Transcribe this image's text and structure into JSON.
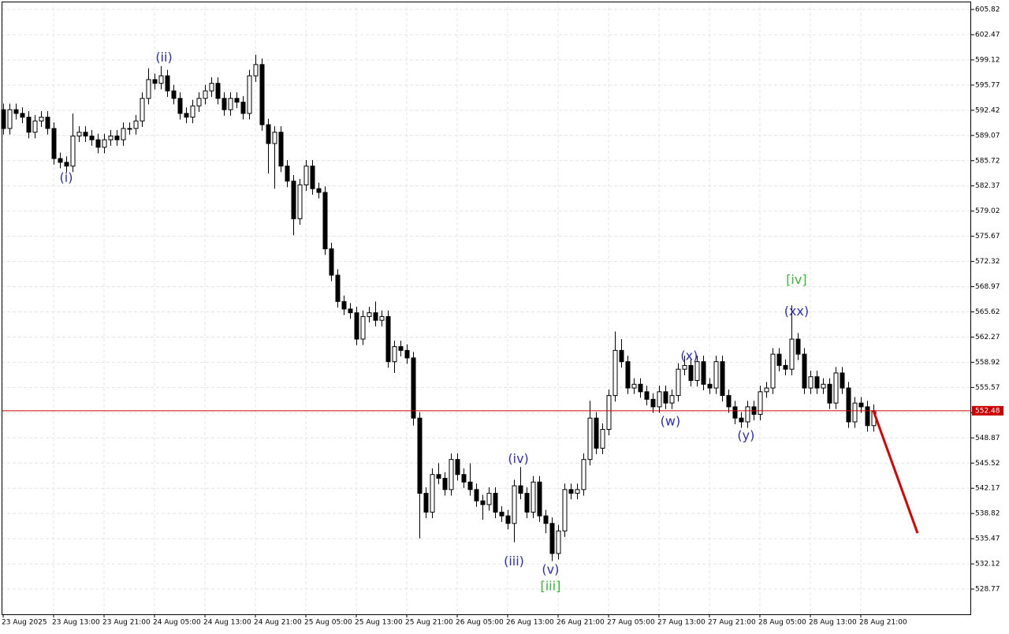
{
  "chart_data": {
    "type": "candlestick",
    "open": [
      592.5,
      590,
      592.5,
      592,
      591.5,
      589.5,
      591,
      591.5,
      590,
      586,
      585.5,
      585,
      589,
      589.5,
      589,
      588.5,
      587.5,
      588.5,
      589,
      588.5,
      590,
      590,
      591,
      594,
      596.5,
      596,
      597,
      595,
      594,
      592,
      591.5,
      593,
      594,
      595,
      596,
      594,
      592.5,
      594,
      593.5,
      592,
      597,
      598.5,
      590.5,
      588,
      589.5,
      585,
      583,
      578,
      582.5,
      585,
      582,
      581.5,
      574,
      570.5,
      567,
      566,
      565.5,
      562,
      565,
      565.5,
      564.5,
      565,
      559,
      561,
      560.5,
      559.5,
      551.5,
      541.5,
      539,
      544,
      543.5,
      542,
      546,
      544,
      543,
      542,
      540.5,
      540,
      541.5,
      539,
      538.5,
      537.5,
      542.5,
      541.5,
      539,
      543,
      538.5,
      537.5,
      533.5,
      536.5,
      542,
      541.5,
      542,
      546,
      551.5,
      547.5,
      550,
      554.5,
      560.5,
      559,
      555.5,
      556,
      555,
      554,
      553,
      555,
      553.5,
      554.5,
      558,
      558.5,
      556.5,
      559,
      556,
      555.5,
      559,
      554.5,
      553,
      551.5,
      551,
      553,
      552,
      555,
      555.5,
      560,
      558.5,
      558,
      562,
      560,
      555.5,
      557,
      555.5,
      556,
      553.5,
      557.5,
      555.5,
      551,
      553.5,
      553,
      550.5
    ],
    "high": [
      593.3,
      593.3,
      593.3,
      592.8,
      592.3,
      591.8,
      592.3,
      592.3,
      590.8,
      586.8,
      586.3,
      592,
      590.3,
      590.3,
      589.8,
      589.3,
      589.3,
      589.8,
      589.8,
      590.8,
      590.8,
      591.8,
      594.8,
      598,
      597.3,
      598.3,
      597.8,
      595.8,
      594.8,
      592.8,
      593.8,
      594.8,
      595.8,
      596.8,
      596.8,
      594.8,
      594.8,
      594.8,
      594.3,
      597.8,
      599.8,
      599.3,
      591.3,
      590.3,
      590.3,
      585.8,
      583.8,
      583.3,
      585.8,
      585.8,
      582.8,
      582.3,
      574.8,
      571.3,
      567.8,
      566.8,
      566.3,
      565.8,
      566.3,
      567,
      565.8,
      565.8,
      561.8,
      561.8,
      561.3,
      560.3,
      552.3,
      542.3,
      544.8,
      545.5,
      544.3,
      546.8,
      546.8,
      544.8,
      545.5,
      542.8,
      541.3,
      542.3,
      542.3,
      539.8,
      539.3,
      543.3,
      545,
      542.3,
      543.8,
      543.8,
      539.3,
      538.3,
      537.3,
      542.8,
      542.8,
      542.8,
      546.8,
      553.8,
      552.3,
      550.8,
      555.3,
      563,
      562,
      559.8,
      556.8,
      556.8,
      555.8,
      554.8,
      555.8,
      555.8,
      555.3,
      558.8,
      559.8,
      559.3,
      559.8,
      559.8,
      556.8,
      559.8,
      559.8,
      555.3,
      553.8,
      552.3,
      553.8,
      553.8,
      555.8,
      556.3,
      560.8,
      560.8,
      559.3,
      566.5,
      562.8,
      560.8,
      557.8,
      557.8,
      556.8,
      556.8,
      558.3,
      558.3,
      556.3,
      554.3,
      554.3,
      553.8,
      553.3
    ],
    "low": [
      589.2,
      589.2,
      591.2,
      590.7,
      588.7,
      588.7,
      590.2,
      589.2,
      585.2,
      584.7,
      584.2,
      584.2,
      588.2,
      588.2,
      587.7,
      586.7,
      586.7,
      587.7,
      587.7,
      587.7,
      589.2,
      589.2,
      590.2,
      593.2,
      595.2,
      595.2,
      594.2,
      593.2,
      591.2,
      590.7,
      590.7,
      592.2,
      593.2,
      594.2,
      593.2,
      591.7,
      591.7,
      592.7,
      591.2,
      591.2,
      596.2,
      589.7,
      584,
      582,
      584.2,
      582.2,
      575.8,
      577.2,
      581.7,
      581.2,
      580.7,
      573.2,
      569.7,
      566.2,
      565.2,
      564.7,
      561.2,
      561.2,
      564.2,
      563.7,
      563.7,
      558.2,
      557.5,
      559.7,
      558.7,
      550.5,
      535.5,
      538.2,
      538.2,
      542.7,
      541.2,
      541.2,
      543.2,
      542.2,
      541.2,
      539.7,
      538,
      539.2,
      538.2,
      537.7,
      536.7,
      535,
      540.7,
      538.2,
      538.2,
      537.7,
      536.2,
      532.5,
      532.7,
      535.7,
      540.7,
      540.7,
      541.2,
      545.2,
      546.7,
      546.7,
      549.2,
      553.7,
      558.2,
      554.7,
      554.7,
      554.2,
      553.2,
      552.2,
      552.2,
      552.7,
      552.7,
      553.7,
      557.2,
      555.7,
      555.7,
      555.2,
      554.7,
      554.7,
      553.7,
      552.2,
      550.7,
      550.2,
      550.2,
      551.2,
      551.2,
      554.2,
      554.7,
      557.7,
      557.2,
      557.2,
      559.2,
      554.7,
      554.7,
      554.7,
      554.7,
      552.7,
      552.7,
      554.7,
      550.2,
      550.2,
      552.2,
      549.7,
      549.7
    ],
    "close": [
      590,
      592.5,
      592,
      591.5,
      589.5,
      591,
      591.5,
      590,
      586,
      585.5,
      585,
      589,
      589.5,
      589,
      588.5,
      587.5,
      588.5,
      589,
      588.5,
      590,
      590,
      591,
      594,
      596.5,
      596,
      597,
      595,
      594,
      592,
      591.5,
      593,
      594,
      595,
      596,
      594,
      592.5,
      594,
      593.5,
      592,
      597,
      598.5,
      590.5,
      588,
      589.5,
      585,
      583,
      578,
      582.5,
      585,
      582,
      581.5,
      574,
      570.5,
      567,
      566,
      565.5,
      562,
      565,
      565.5,
      564.5,
      565,
      559,
      561,
      560.5,
      559.5,
      551.5,
      541.5,
      539,
      544,
      543.5,
      542,
      546,
      544,
      543,
      542,
      540.5,
      540,
      541.5,
      539,
      538.5,
      537.5,
      542.5,
      541.5,
      539,
      543,
      538.5,
      537.5,
      533.5,
      536.5,
      542,
      541.5,
      542,
      546,
      551.5,
      547.5,
      550,
      554.5,
      560.5,
      559,
      555.5,
      556,
      555,
      554,
      553,
      555,
      553.5,
      554.5,
      558,
      558.5,
      556.5,
      559,
      556,
      555.5,
      559,
      554.5,
      553,
      551.5,
      551,
      553,
      552,
      555,
      555.5,
      560,
      558.5,
      558,
      562,
      560,
      555.5,
      557,
      555.5,
      556,
      553.5,
      557.5,
      555.5,
      551,
      553.5,
      553,
      550.5,
      552.48
    ],
    "up_color": "#ffffff",
    "down_color": "#000000",
    "outline_color": "#000000",
    "ylim": [
      525.42,
      606.87
    ],
    "yticks": [
      528.77,
      532.12,
      535.47,
      538.82,
      542.17,
      545.52,
      548.87,
      552.22,
      555.57,
      558.92,
      562.27,
      565.62,
      568.97,
      572.32,
      575.67,
      579.02,
      582.37,
      585.72,
      589.07,
      592.42,
      595.77,
      599.12,
      602.47,
      605.82
    ],
    "xlim": [
      -0.25,
      153.5
    ],
    "xticks": [
      {
        "value": 0,
        "label": "23 Aug 2025"
      },
      {
        "value": 8,
        "label": "23 Aug 13:00"
      },
      {
        "value": 16,
        "label": "23 Aug 21:00"
      },
      {
        "value": 24,
        "label": "24 Aug 05:00"
      },
      {
        "value": 32,
        "label": "24 Aug 13:00"
      },
      {
        "value": 40,
        "label": "24 Aug 21:00"
      },
      {
        "value": 48,
        "label": "25 Aug 05:00"
      },
      {
        "value": 56,
        "label": "25 Aug 13:00"
      },
      {
        "value": 64,
        "label": "25 Aug 21:00"
      },
      {
        "value": 72,
        "label": "26 Aug 05:00"
      },
      {
        "value": 80,
        "label": "26 Aug 13:00"
      },
      {
        "value": 88,
        "label": "26 Aug 21:00"
      },
      {
        "value": 96,
        "label": "27 Aug 05:00"
      },
      {
        "value": 104,
        "label": "27 Aug 13:00"
      },
      {
        "value": 112,
        "label": "27 Aug 21:00"
      },
      {
        "value": 120,
        "label": "28 Aug 05:00"
      },
      {
        "value": 128,
        "label": "28 Aug 13:00"
      },
      {
        "value": 136,
        "label": "28 Aug 21:00"
      }
    ],
    "grid": true,
    "last_price": {
      "value": 552.48,
      "color": "#cc0000"
    },
    "forecast": {
      "x": [
        138,
        145
      ],
      "values": [
        552.48,
        536.2
      ],
      "color": "#dd0000"
    },
    "annotations": [
      {
        "text": "(i)",
        "x": 10,
        "y": 583.4,
        "color": "#2b2bc8"
      },
      {
        "text": "(ii)",
        "x": 25.5,
        "y": 599.4,
        "color": "#2b2bc8"
      },
      {
        "text": "(iii)",
        "x": 81,
        "y": 532.4,
        "color": "#2b2bc8"
      },
      {
        "text": "(iv)",
        "x": 81.7,
        "y": 546.0,
        "color": "#2b2bc8"
      },
      {
        "text": "(v)",
        "x": 86.8,
        "y": 531.3,
        "color": "#2b2bc8"
      },
      {
        "text": "[iii]",
        "x": 86.8,
        "y": 529.1,
        "color": "#33bb33"
      },
      {
        "text": "(w)",
        "x": 105.8,
        "y": 551.0,
        "color": "#2b2bc8"
      },
      {
        "text": "(x)",
        "x": 108.8,
        "y": 559.7,
        "color": "#2b2bc8"
      },
      {
        "text": "(y)",
        "x": 117.8,
        "y": 549.1,
        "color": "#2b2bc8"
      },
      {
        "text": "(xx)",
        "x": 125.8,
        "y": 565.6,
        "color": "#2b2bc8"
      },
      {
        "text": "[iv]",
        "x": 125.8,
        "y": 569.8,
        "color": "#33bb33"
      }
    ]
  }
}
